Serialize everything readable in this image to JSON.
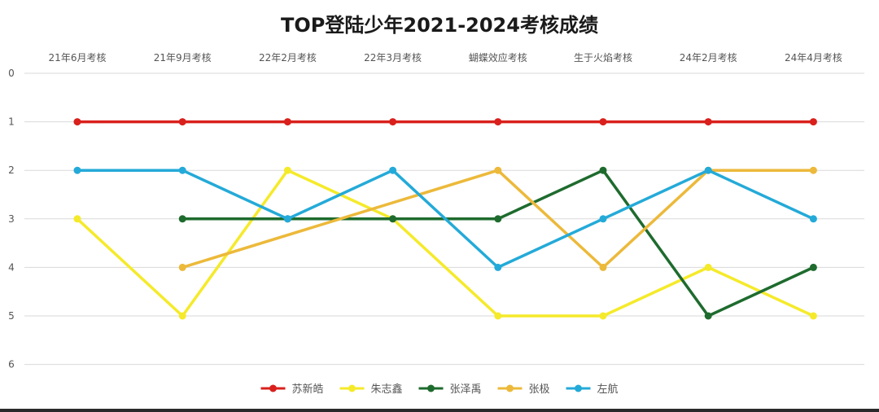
{
  "chart_data": {
    "type": "line",
    "title": "TOP登陆少年2021-2024考核成绩",
    "categories": [
      "21年6月考核",
      "21年9月考核",
      "22年2月考核",
      "22年3月考核",
      "蝴蝶效应考核",
      "生于火焰考核",
      "24年2月考核",
      "24年4月考核"
    ],
    "ylim": [
      0,
      6
    ],
    "y_ticks": [
      "0",
      "1",
      "2",
      "3",
      "4",
      "5",
      "6"
    ],
    "y_inverted": true,
    "x_axis_position": "top",
    "grid": true,
    "legend_position": "bottom",
    "series": [
      {
        "name": "苏新皓",
        "color": "#d9201c",
        "values": [
          1,
          1,
          1,
          1,
          1,
          1,
          1,
          1
        ]
      },
      {
        "name": "朱志鑫",
        "color": "#f5ea2a",
        "values": [
          3,
          5,
          2,
          3,
          5,
          5,
          4,
          5
        ]
      },
      {
        "name": "张泽禹",
        "color": "#1e6b2e",
        "values": [
          null,
          3,
          3,
          3,
          3,
          2,
          5,
          4
        ]
      },
      {
        "name": "张极",
        "color": "#ecb93a",
        "values": [
          null,
          4,
          null,
          null,
          2,
          4,
          2,
          2
        ]
      },
      {
        "name": "左航",
        "color": "#24aad8",
        "values": [
          2,
          2,
          3,
          2,
          4,
          3,
          2,
          3
        ]
      }
    ]
  }
}
